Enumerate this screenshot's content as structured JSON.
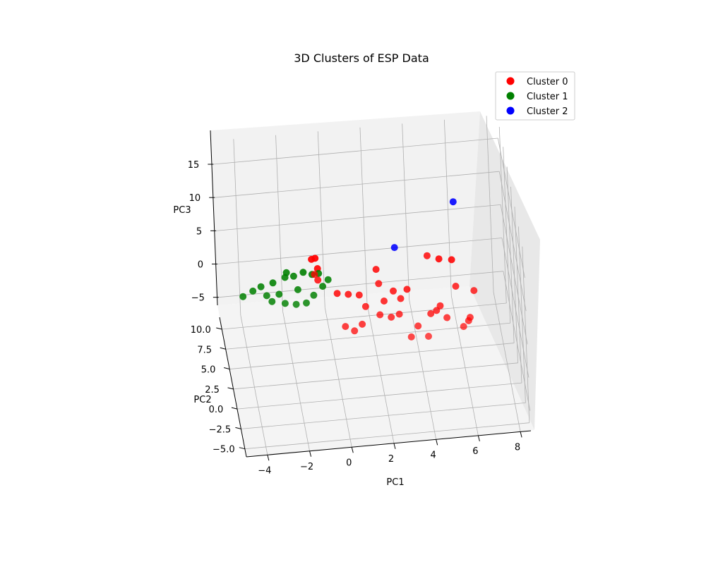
{
  "chart_data": {
    "type": "scatter",
    "title": "3D Clusters of ESP Data",
    "xlabel": "PC1",
    "ylabel": "PC2",
    "zlabel": "PC3",
    "xticks": [
      "−4",
      "−2",
      "0",
      "2",
      "4",
      "6",
      "8"
    ],
    "yticks": [
      "−5.0",
      "−2.5",
      "0.0",
      "2.5",
      "5.0",
      "7.5",
      "10.0"
    ],
    "zticks": [
      "−5",
      "0",
      "5",
      "10",
      "15"
    ],
    "xlim": [
      -5,
      8.5
    ],
    "ylim": [
      -6,
      11.5
    ],
    "zlim": [
      -8,
      18.5
    ],
    "grid": true,
    "legend_position": "top-right",
    "series": [
      {
        "name": "Cluster 0",
        "color": "#ff0000",
        "points": [
          [
            -0.4,
            9.4,
            0.5
          ],
          [
            -0.6,
            10.6,
            0.5
          ],
          [
            -0.4,
            11.1,
            0.0
          ],
          [
            2.2,
            4.8,
            3.0
          ],
          [
            2.9,
            5.2,
            1.2
          ],
          [
            3.6,
            6.0,
            0.3
          ],
          [
            -0.8,
            5.1,
            4.9
          ],
          [
            -0.6,
            6.0,
            2.9
          ],
          [
            2.2,
            6.5,
            3.1
          ],
          [
            4.6,
            5.8,
            5.3
          ],
          [
            5.3,
            8.4,
            1.5
          ],
          [
            5.9,
            8.4,
            1.2
          ],
          [
            5.8,
            4.1,
            2.4
          ],
          [
            6.6,
            3.2,
            2.6
          ],
          [
            6.2,
            1.6,
            0.1
          ],
          [
            6.3,
            2.0,
            0.1
          ],
          [
            5.9,
            0.7,
            0.4
          ],
          [
            5.2,
            1.9,
            0.5
          ],
          [
            4.2,
            0.3,
            -0.1
          ],
          [
            3.4,
            0.5,
            -0.2
          ],
          [
            3.8,
            1.6,
            0.0
          ],
          [
            1.2,
            2.2,
            0.3
          ],
          [
            0.8,
            1.8,
            -0.1
          ],
          [
            0.4,
            2.2,
            0.2
          ],
          [
            2.1,
            3.0,
            0.5
          ],
          [
            2.6,
            2.5,
            0.6
          ],
          [
            3.0,
            2.7,
            0.7
          ],
          [
            1.5,
            4.1,
            0.6
          ],
          [
            2.4,
            4.4,
            0.8
          ],
          [
            3.2,
            4.6,
            0.7
          ],
          [
            0.3,
            6.2,
            0.4
          ],
          [
            0.8,
            5.8,
            0.6
          ],
          [
            1.3,
            5.5,
            0.7
          ],
          [
            4.5,
            2.9,
            0.1
          ],
          [
            4.8,
            3.3,
            0.0
          ],
          [
            5.0,
            3.6,
            0.3
          ]
        ]
      },
      {
        "name": "Cluster 1",
        "color": "#008000",
        "points": [
          [
            -4.1,
            7.2,
            0.0
          ],
          [
            -3.6,
            7.6,
            0.2
          ],
          [
            -3.2,
            7.8,
            0.5
          ],
          [
            -2.6,
            8.3,
            0.3
          ],
          [
            -2.0,
            8.6,
            0.6
          ],
          [
            -1.6,
            8.4,
            0.9
          ],
          [
            -1.1,
            9.1,
            0.5
          ],
          [
            -0.7,
            8.9,
            0.3
          ],
          [
            -0.4,
            8.7,
            0.6
          ],
          [
            -2.8,
            6.1,
            0.2
          ],
          [
            -2.2,
            5.8,
            0.1
          ],
          [
            -1.7,
            5.4,
            0.3
          ],
          [
            -1.2,
            5.7,
            0.0
          ],
          [
            -0.8,
            6.4,
            0.2
          ],
          [
            -1.5,
            7.1,
            0.4
          ],
          [
            -2.4,
            7.0,
            0.1
          ],
          [
            -3.0,
            6.8,
            0.3
          ],
          [
            -0.3,
            7.4,
            0.2
          ],
          [
            0.0,
            8.0,
            0.4
          ],
          [
            -1.9,
            9.0,
            0.8
          ]
        ]
      },
      {
        "name": "Cluster 2",
        "color": "#0000ff",
        "points": [
          [
            6.1,
            8.7,
            9.5
          ],
          [
            3.2,
            8.0,
            4.3
          ]
        ]
      }
    ]
  }
}
